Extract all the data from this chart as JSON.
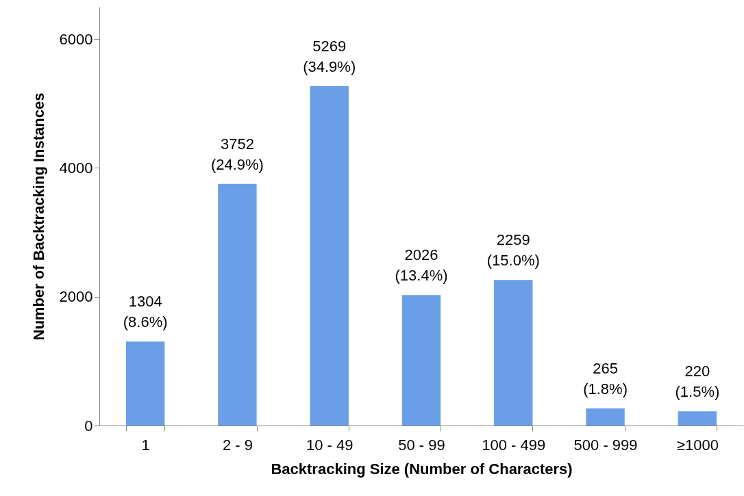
{
  "chart_data": {
    "type": "bar",
    "xlabel": "Backtracking Size (Number of Characters)",
    "ylabel": "Number of Backtracking Instances",
    "categories": [
      "1",
      "2 - 9",
      "10 - 49",
      "50 - 99",
      "100 - 499",
      "500 - 999",
      "≥1000"
    ],
    "values": [
      1304,
      3752,
      5269,
      2026,
      2259,
      265,
      220
    ],
    "value_labels": [
      "1304\n(8.6%)",
      "3752\n(24.9%)",
      "5269\n(34.9%)",
      "2026\n(13.4%)",
      "2259\n(15.0%)",
      "265\n(1.8%)",
      "220\n(1.5%)"
    ],
    "color": "#6a9fe8",
    "ylim": [
      0,
      6500
    ],
    "yticks": [
      0,
      2000,
      4000,
      6000
    ],
    "grid": false
  }
}
